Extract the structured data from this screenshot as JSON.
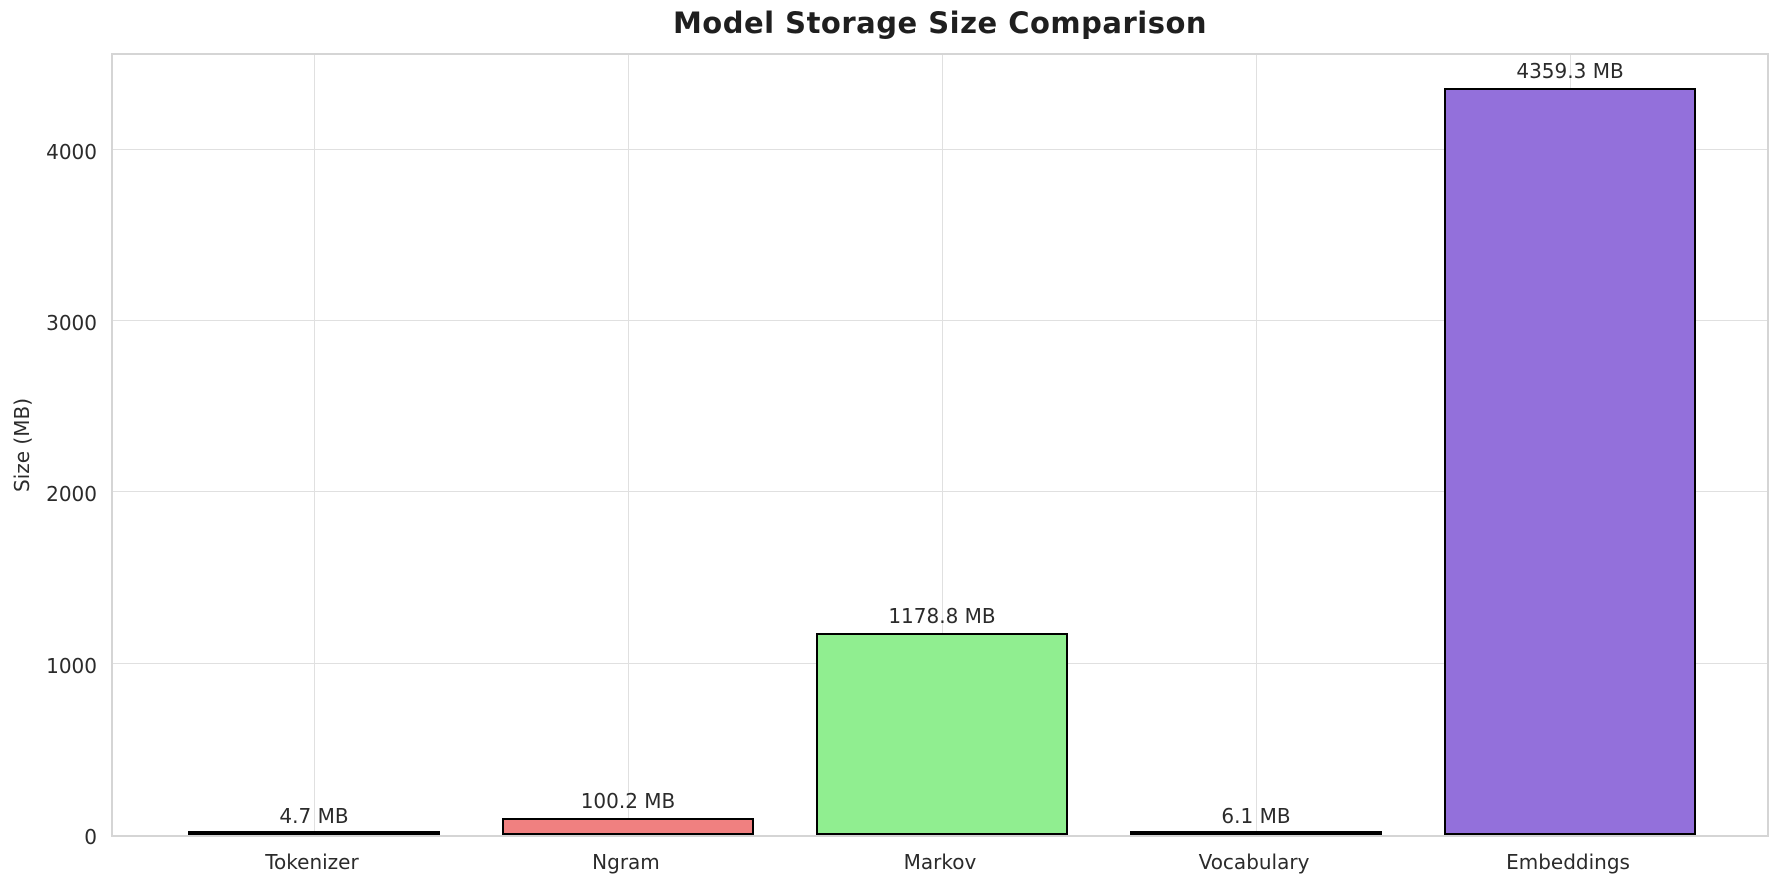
{
  "chart_data": {
    "type": "bar",
    "title": "Model Storage Size Comparison",
    "xlabel": "",
    "ylabel": "Size (MB)",
    "categories": [
      "Tokenizer",
      "Ngram",
      "Markov",
      "Vocabulary",
      "Embeddings"
    ],
    "values": [
      4.7,
      100.2,
      1178.8,
      6.1,
      4359.3
    ],
    "bar_labels": [
      "4.7 MB",
      "100.2 MB",
      "1178.8 MB",
      "6.1 MB",
      "4359.3 MB"
    ],
    "bar_colors": [
      "#87CEEB",
      "#F08080",
      "#90EE90",
      "#FFD700",
      "#9370DB"
    ],
    "bar_edge_color": "#000000",
    "bar_width": 0.8,
    "yticks": [
      0,
      1000,
      2000,
      3000,
      4000
    ],
    "ylim": [
      0,
      4577
    ],
    "xlim": [
      -0.64,
      4.64
    ],
    "grid": true,
    "legend": false,
    "grid_color": "#e0e0e0",
    "axes_edge_color": "#d5d5d5",
    "text_color": "#2b2b2b",
    "background_color": "#ffffff"
  }
}
